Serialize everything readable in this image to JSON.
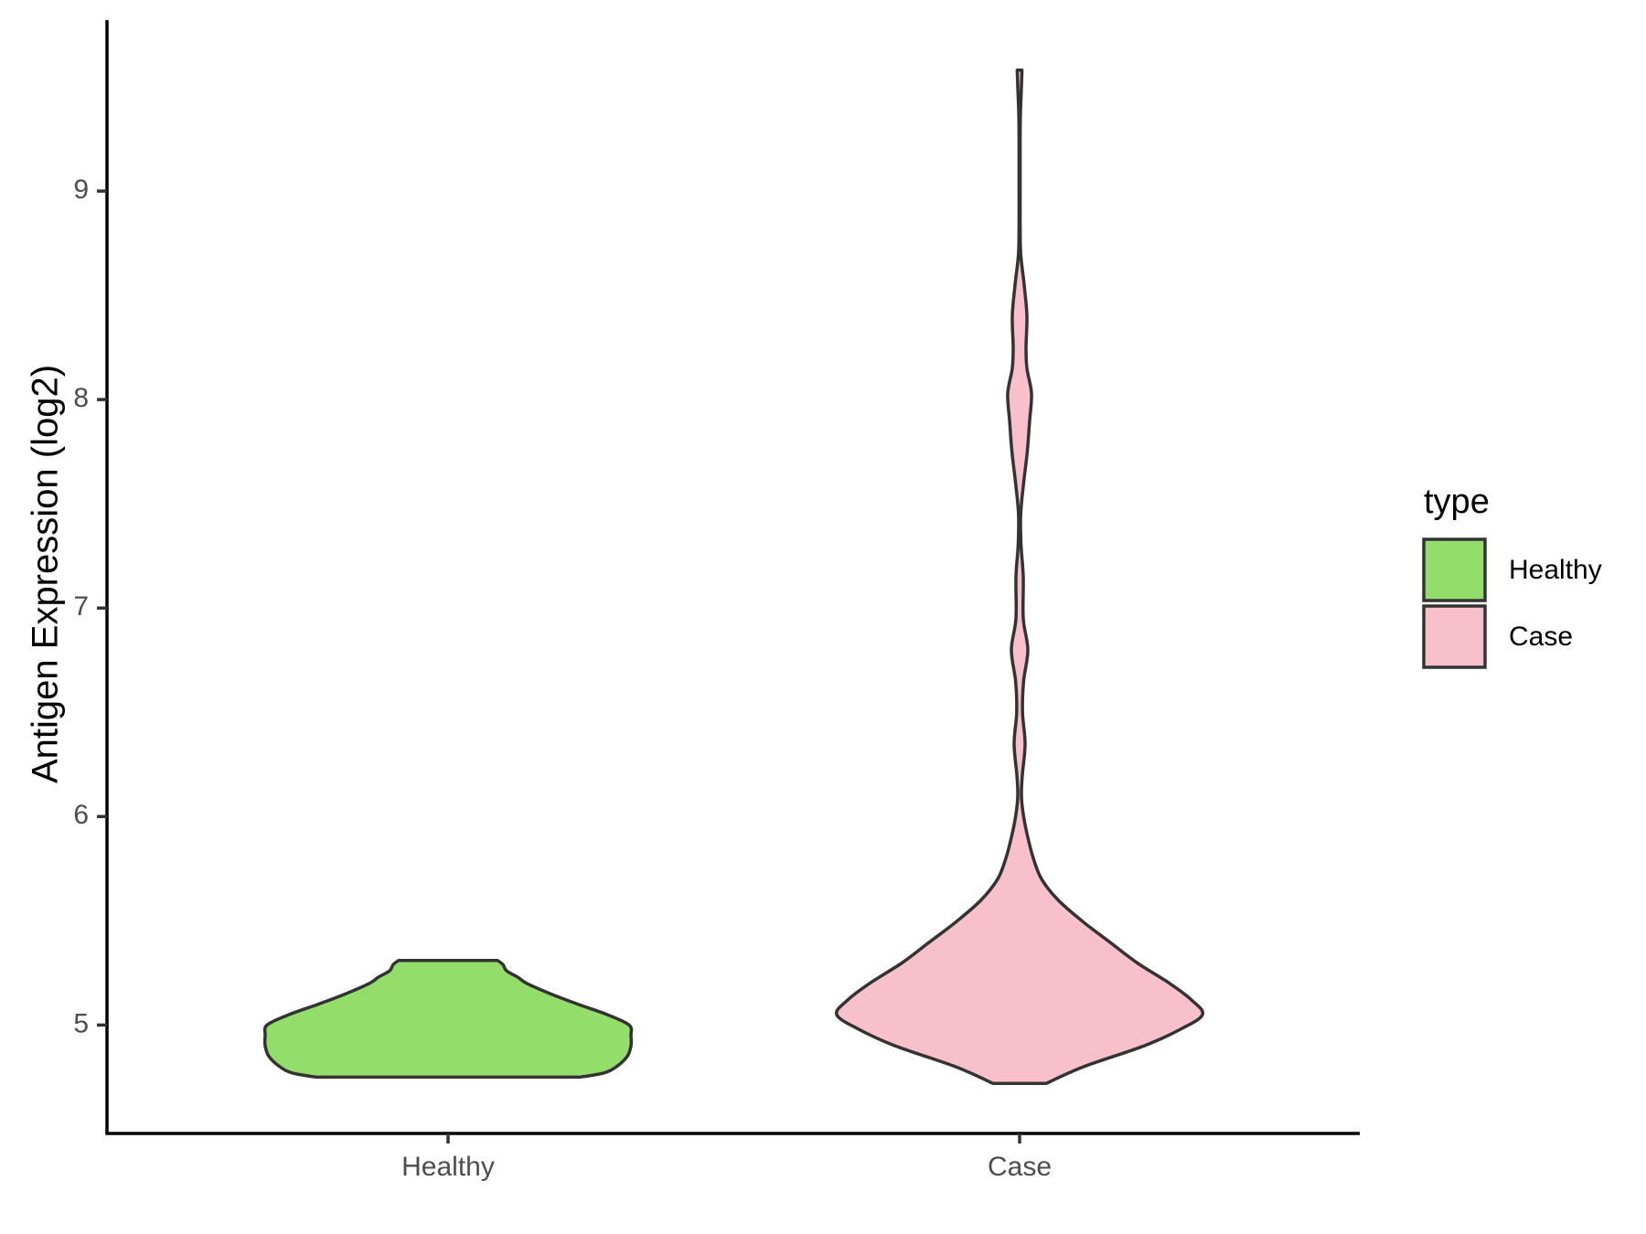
{
  "chart_data": {
    "type": "violin",
    "title": "",
    "xlabel": "",
    "ylabel": "Antigen Expression (log2)",
    "ylim": [
      4.48,
      9.82
    ],
    "yticks": [
      5,
      6,
      7,
      8,
      9
    ],
    "categories": [
      "Healthy",
      "Case"
    ],
    "grid": false,
    "legend": {
      "title": "type",
      "placement": "right",
      "entries": [
        {
          "label": "Healthy",
          "color": "#93dd6a"
        },
        {
          "label": "Case",
          "color": "#f8c0cb"
        }
      ]
    },
    "series": [
      {
        "category": "Healthy",
        "color": "#93dd6a",
        "min": 4.75,
        "max": 5.31,
        "density_profile": [
          [
            4.75,
            0.72
          ],
          [
            4.77,
            0.85
          ],
          [
            4.8,
            0.92
          ],
          [
            4.85,
            0.98
          ],
          [
            4.9,
            1.0
          ],
          [
            4.95,
            1.0
          ],
          [
            5.0,
            0.99
          ],
          [
            5.05,
            0.87
          ],
          [
            5.1,
            0.71
          ],
          [
            5.15,
            0.56
          ],
          [
            5.2,
            0.43
          ],
          [
            5.23,
            0.38
          ],
          [
            5.26,
            0.32
          ],
          [
            5.29,
            0.3
          ],
          [
            5.31,
            0.27
          ]
        ]
      },
      {
        "category": "Case",
        "color": "#f8c0cb",
        "min": 4.72,
        "max": 9.58,
        "density_profile": [
          [
            4.72,
            0.145
          ],
          [
            4.8,
            0.35
          ],
          [
            4.9,
            0.68
          ],
          [
            4.98,
            0.88
          ],
          [
            5.05,
            1.0
          ],
          [
            5.12,
            0.94
          ],
          [
            5.2,
            0.82
          ],
          [
            5.3,
            0.64
          ],
          [
            5.4,
            0.49
          ],
          [
            5.5,
            0.34
          ],
          [
            5.6,
            0.21
          ],
          [
            5.7,
            0.12
          ],
          [
            5.8,
            0.075
          ],
          [
            5.9,
            0.045
          ],
          [
            6.0,
            0.022
          ],
          [
            6.1,
            0.01
          ],
          [
            6.2,
            0.015
          ],
          [
            6.35,
            0.03
          ],
          [
            6.5,
            0.016
          ],
          [
            6.65,
            0.022
          ],
          [
            6.8,
            0.045
          ],
          [
            6.95,
            0.02
          ],
          [
            7.15,
            0.02
          ],
          [
            7.3,
            0.008
          ],
          [
            7.45,
            0.006
          ],
          [
            7.6,
            0.022
          ],
          [
            7.75,
            0.042
          ],
          [
            7.9,
            0.055
          ],
          [
            8.03,
            0.065
          ],
          [
            8.15,
            0.04
          ],
          [
            8.25,
            0.035
          ],
          [
            8.4,
            0.04
          ],
          [
            8.55,
            0.025
          ],
          [
            8.7,
            0.006
          ],
          [
            8.85,
            0.003
          ],
          [
            9.0,
            0.003
          ],
          [
            9.2,
            0.003
          ],
          [
            9.35,
            0.004
          ],
          [
            9.5,
            0.01
          ],
          [
            9.58,
            0.013
          ]
        ]
      }
    ]
  }
}
